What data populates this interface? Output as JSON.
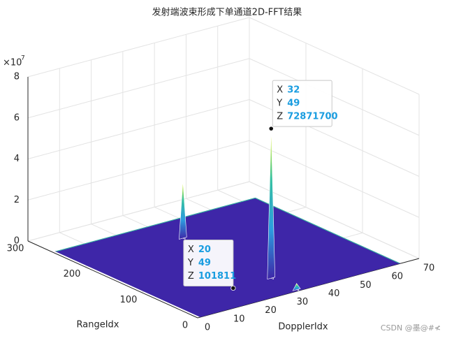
{
  "chart_data": {
    "type": "surface3d",
    "title": "发射端波束形成下单通道2D-FFT结果",
    "xlabel": "DopplerIdx",
    "ylabel": "RangeIdx",
    "z_scale_base": "×10",
    "z_scale_power": "7",
    "xlim": [
      0,
      70
    ],
    "xticks": [
      0,
      10,
      20,
      30,
      40,
      50,
      60,
      70
    ],
    "ylim": [
      0,
      300
    ],
    "yticks": [
      0,
      100,
      200,
      300
    ],
    "zlim": [
      0,
      80000000
    ],
    "zticks": [
      {
        "value": 0,
        "label": "0"
      },
      {
        "value": 20000000,
        "label": "2"
      },
      {
        "value": 40000000,
        "label": "4"
      },
      {
        "value": 60000000,
        "label": "6"
      },
      {
        "value": 80000000,
        "label": "8"
      }
    ],
    "grid": true,
    "surface": {
      "xlim": [
        1,
        64
      ],
      "ylim": [
        1,
        256
      ],
      "color": "#3e26a8"
    },
    "colormap": [
      "#3e26a8",
      "#2b9de0",
      "#35c1a0",
      "#f9fb0e"
    ],
    "peaks": {
      "x": [
        32,
        32,
        32
      ],
      "y": [
        49,
        205,
        4
      ],
      "values": [
        72871700,
        28000000,
        3000000
      ]
    },
    "datatip_labels": [
      "X",
      "Y",
      "Z"
    ],
    "datatips": [
      {
        "x": 32,
        "y": 49,
        "z": 72871700
      },
      {
        "x": 20,
        "y": 49,
        "z": 101811
      }
    ]
  },
  "watermark": "CSDN @墨@#≮"
}
